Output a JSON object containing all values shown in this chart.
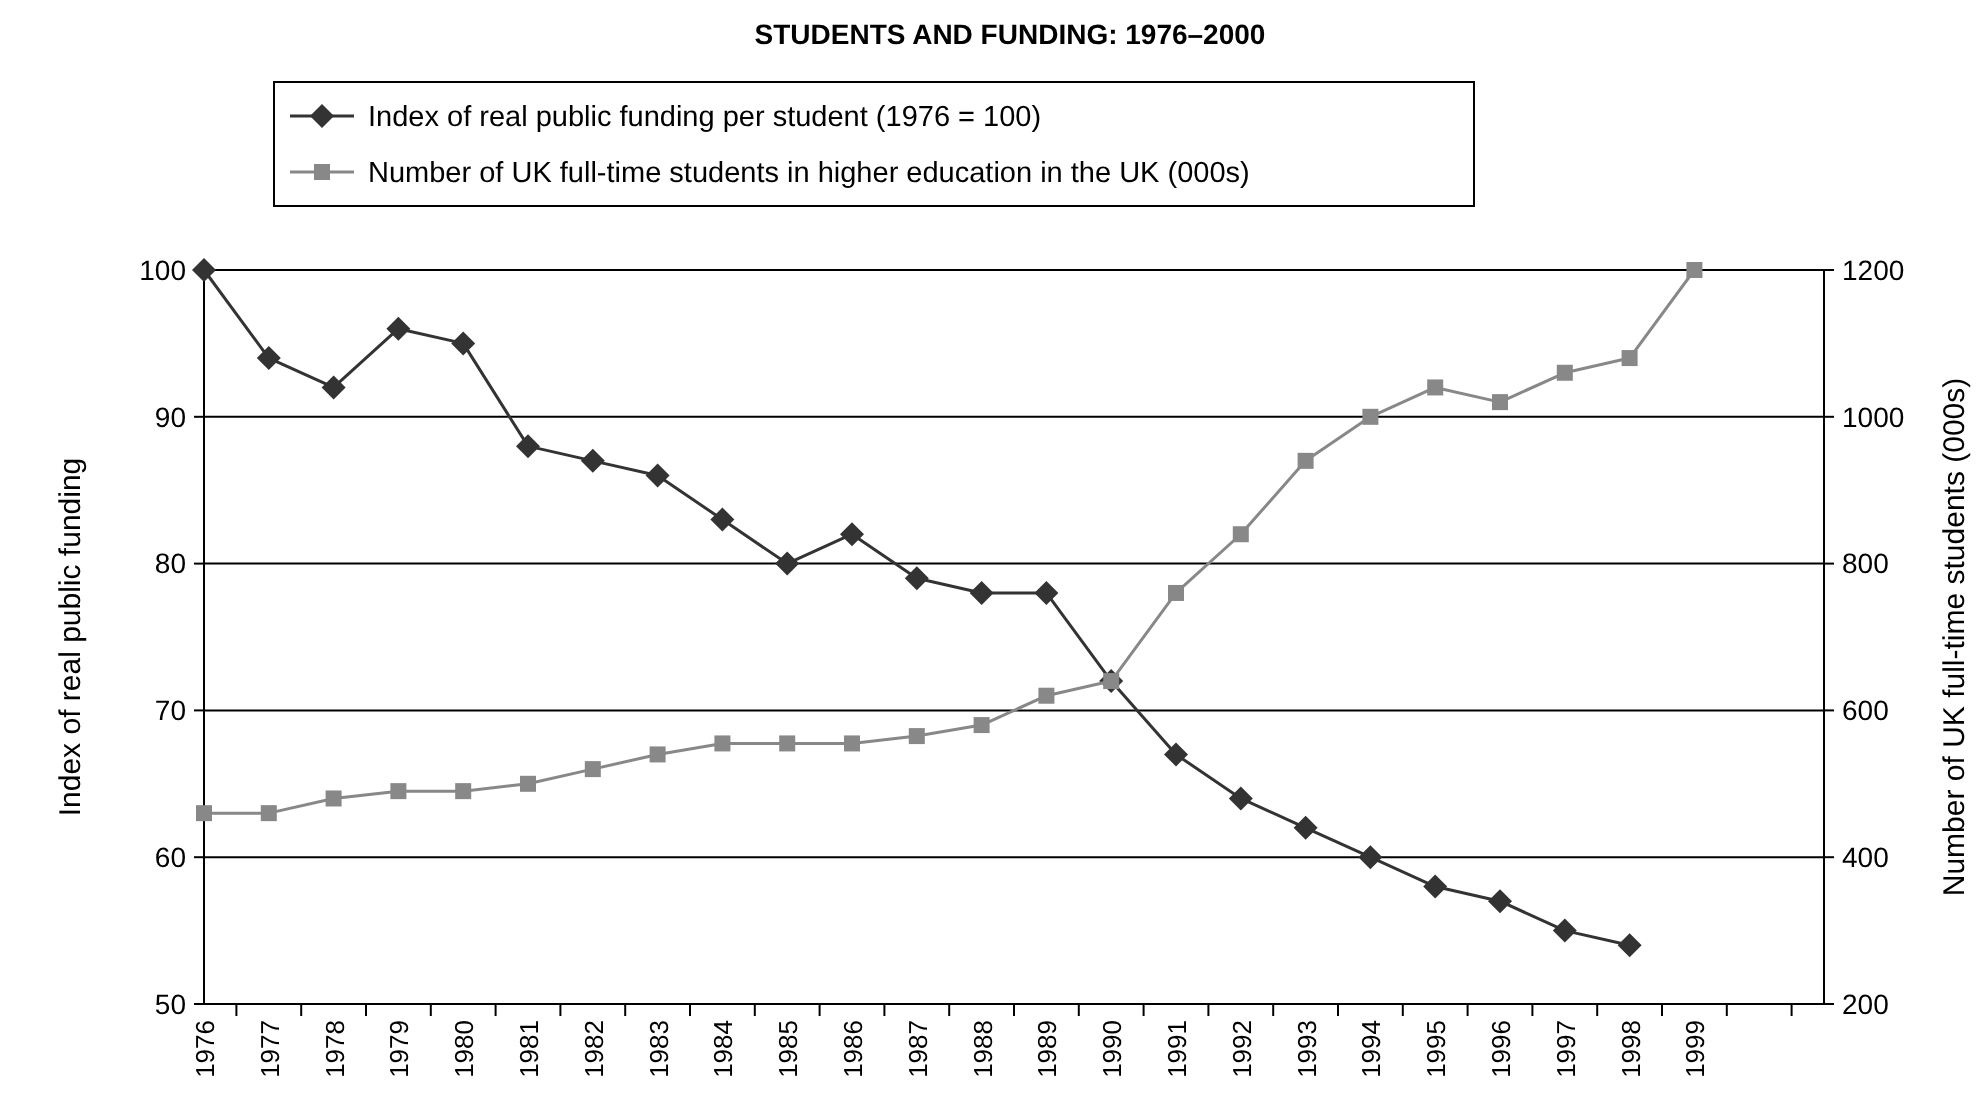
{
  "chart_data": {
    "type": "line",
    "title": "STUDENTS AND FUNDING: 1976–2000",
    "categories": [
      "1976",
      "1977",
      "1978",
      "1979",
      "1980",
      "1981",
      "1982",
      "1983",
      "1984",
      "1985",
      "1986",
      "1987",
      "1988",
      "1989",
      "1990",
      "1991",
      "1992",
      "1993",
      "1994",
      "1995",
      "1996",
      "1997",
      "1998",
      "1999",
      null,
      null
    ],
    "series": [
      {
        "name": "Index of real public funding per student (1976 = 100)",
        "color": "#333333",
        "marker": "diamond",
        "values": [
          100,
          94,
          92,
          96,
          95,
          88,
          87,
          86,
          83,
          80,
          82,
          79,
          78,
          78,
          72,
          67,
          64,
          62,
          60,
          58,
          57,
          55,
          54,
          null,
          null,
          null
        ]
      },
      {
        "name": "Number of UK full-time students in higher education in the UK (000s)",
        "color": "#888888",
        "marker": "square",
        "axis": "y2",
        "values": [
          460,
          460,
          480,
          490,
          490,
          500,
          520,
          540,
          555,
          555,
          555,
          565,
          580,
          620,
          640,
          760,
          840,
          940,
          1000,
          1040,
          1020,
          1060,
          1080,
          1200,
          null,
          null
        ]
      }
    ],
    "ylabel": "Index of real public funding",
    "y2label": "Number of UK full-time students (000s)",
    "ylim": [
      50,
      100
    ],
    "yticks": [
      50,
      60,
      70,
      80,
      90,
      100
    ],
    "y2lim": [
      200,
      1200
    ],
    "y2ticks": [
      200,
      400,
      600,
      800,
      1000,
      1200
    ],
    "grid": "y",
    "legend": "top",
    "line_style": "solid"
  }
}
